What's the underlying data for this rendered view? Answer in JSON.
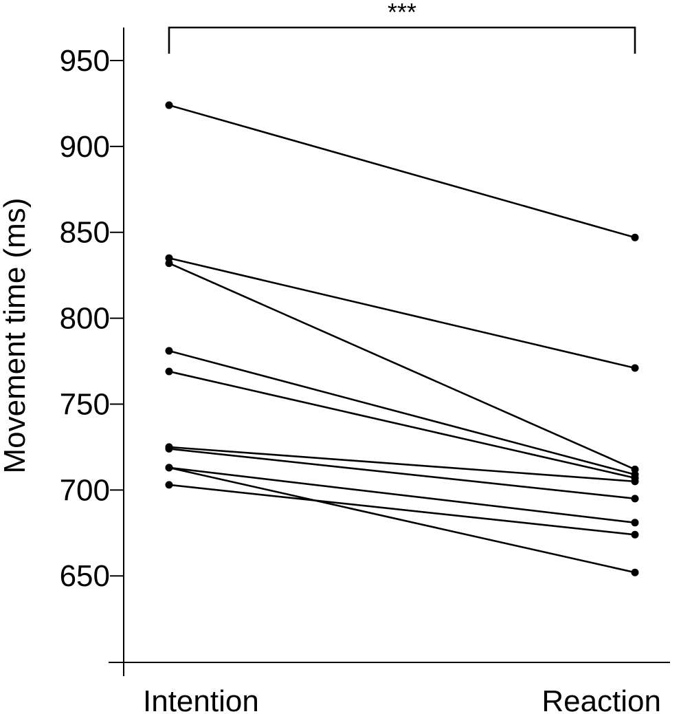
{
  "chart_data": {
    "type": "line",
    "ylabel": "Movement time (ms)",
    "categories": [
      "Intention",
      "Reaction"
    ],
    "ylim": [
      600,
      970
    ],
    "yticks": [
      650,
      700,
      750,
      800,
      850,
      900,
      950
    ],
    "series": [
      {
        "values": [
          924,
          847
        ]
      },
      {
        "values": [
          835,
          771
        ]
      },
      {
        "values": [
          832,
          712
        ]
      },
      {
        "values": [
          781,
          709
        ]
      },
      {
        "values": [
          769,
          707
        ]
      },
      {
        "values": [
          725,
          705
        ]
      },
      {
        "values": [
          724,
          695
        ]
      },
      {
        "values": [
          713,
          681
        ]
      },
      {
        "values": [
          713,
          652
        ]
      },
      {
        "values": [
          703,
          674
        ]
      }
    ],
    "significance": {
      "label": "***",
      "between": [
        "Intention",
        "Reaction"
      ]
    },
    "grid": false,
    "legend": "none"
  }
}
